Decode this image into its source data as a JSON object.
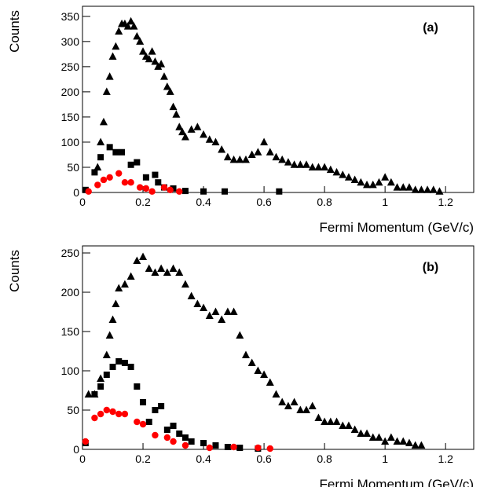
{
  "chart_data": [
    {
      "type": "scatter",
      "label": "(a)",
      "x_label": "Fermi Momentum (GeV/c)",
      "y_label": "Counts",
      "xlim": [
        0,
        1.293
      ],
      "ylim": [
        0,
        370
      ],
      "xticks": [
        0,
        0.2,
        0.4,
        0.6,
        0.8,
        1,
        1.2
      ],
      "yticks": [
        0,
        50,
        100,
        150,
        200,
        250,
        300,
        350
      ],
      "series": [
        {
          "marker": "triangle",
          "color": "#000000",
          "x": [
            0.05,
            0.06,
            0.07,
            0.08,
            0.09,
            0.1,
            0.11,
            0.12,
            0.13,
            0.14,
            0.15,
            0.16,
            0.17,
            0.18,
            0.19,
            0.2,
            0.21,
            0.22,
            0.23,
            0.24,
            0.25,
            0.26,
            0.27,
            0.28,
            0.29,
            0.3,
            0.31,
            0.32,
            0.33,
            0.34,
            0.36,
            0.38,
            0.4,
            0.42,
            0.44,
            0.46,
            0.48,
            0.5,
            0.52,
            0.54,
            0.56,
            0.58,
            0.6,
            0.62,
            0.64,
            0.66,
            0.68,
            0.7,
            0.72,
            0.74,
            0.76,
            0.78,
            0.8,
            0.82,
            0.84,
            0.86,
            0.88,
            0.9,
            0.92,
            0.94,
            0.96,
            0.98,
            1.0,
            1.02,
            1.04,
            1.06,
            1.08,
            1.1,
            1.12,
            1.14,
            1.16,
            1.18
          ],
          "values": [
            50,
            100,
            140,
            200,
            230,
            270,
            290,
            320,
            335,
            335,
            330,
            340,
            330,
            310,
            300,
            280,
            270,
            265,
            280,
            260,
            250,
            255,
            230,
            210,
            200,
            170,
            155,
            130,
            120,
            110,
            125,
            130,
            115,
            105,
            100,
            85,
            70,
            65,
            65,
            65,
            75,
            80,
            100,
            80,
            70,
            65,
            60,
            55,
            55,
            55,
            50,
            50,
            50,
            45,
            40,
            35,
            30,
            25,
            20,
            15,
            15,
            20,
            30,
            20,
            10,
            10,
            10,
            5,
            5,
            5,
            5,
            2
          ]
        },
        {
          "marker": "square",
          "color": "#000000",
          "x": [
            0.01,
            0.04,
            0.06,
            0.09,
            0.11,
            0.13,
            0.16,
            0.18,
            0.21,
            0.24,
            0.25,
            0.27,
            0.3,
            0.34,
            0.4,
            0.47,
            0.65
          ],
          "values": [
            5,
            40,
            70,
            90,
            80,
            80,
            55,
            60,
            30,
            35,
            20,
            10,
            8,
            3,
            2,
            2,
            2
          ]
        },
        {
          "marker": "circle",
          "color": "#ff0000",
          "x": [
            0.02,
            0.05,
            0.07,
            0.09,
            0.12,
            0.14,
            0.16,
            0.19,
            0.21,
            0.23,
            0.27,
            0.29,
            0.32
          ],
          "values": [
            2,
            15,
            25,
            30,
            38,
            20,
            20,
            10,
            8,
            2,
            10,
            5,
            2
          ]
        }
      ]
    },
    {
      "type": "scatter",
      "label": "(b)",
      "x_label": "Fermi Momentum (GeV/c)",
      "y_label": "Counts",
      "xlim": [
        0,
        1.293
      ],
      "ylim": [
        0,
        259
      ],
      "xticks": [
        0,
        0.2,
        0.4,
        0.6,
        0.8,
        1,
        1.2
      ],
      "yticks": [
        0,
        50,
        100,
        150,
        200,
        250
      ],
      "series": [
        {
          "marker": "triangle",
          "color": "#000000",
          "x": [
            0.02,
            0.04,
            0.06,
            0.08,
            0.09,
            0.1,
            0.11,
            0.12,
            0.14,
            0.16,
            0.18,
            0.2,
            0.22,
            0.24,
            0.26,
            0.28,
            0.3,
            0.32,
            0.34,
            0.36,
            0.38,
            0.4,
            0.42,
            0.44,
            0.46,
            0.48,
            0.5,
            0.52,
            0.54,
            0.56,
            0.58,
            0.6,
            0.62,
            0.64,
            0.66,
            0.68,
            0.7,
            0.72,
            0.74,
            0.76,
            0.78,
            0.8,
            0.82,
            0.84,
            0.86,
            0.88,
            0.9,
            0.92,
            0.94,
            0.96,
            0.98,
            1.0,
            1.02,
            1.04,
            1.06,
            1.08,
            1.1,
            1.12
          ],
          "values": [
            70,
            70,
            90,
            120,
            145,
            165,
            185,
            205,
            210,
            220,
            240,
            245,
            230,
            225,
            230,
            225,
            230,
            225,
            210,
            195,
            185,
            180,
            170,
            175,
            165,
            175,
            175,
            145,
            120,
            110,
            100,
            95,
            85,
            70,
            60,
            55,
            60,
            50,
            50,
            55,
            40,
            35,
            35,
            35,
            30,
            30,
            25,
            20,
            20,
            15,
            15,
            10,
            15,
            10,
            10,
            8,
            5,
            5
          ]
        },
        {
          "marker": "square",
          "color": "#000000",
          "x": [
            0.01,
            0.04,
            0.06,
            0.08,
            0.1,
            0.12,
            0.14,
            0.16,
            0.18,
            0.2,
            0.22,
            0.24,
            0.26,
            0.28,
            0.3,
            0.32,
            0.34,
            0.36,
            0.4,
            0.44,
            0.48,
            0.52,
            0.58
          ],
          "values": [
            8,
            70,
            80,
            95,
            105,
            112,
            110,
            105,
            80,
            60,
            35,
            50,
            55,
            25,
            30,
            20,
            15,
            10,
            8,
            5,
            3,
            2,
            1
          ]
        },
        {
          "marker": "circle",
          "color": "#ff0000",
          "x": [
            0.01,
            0.04,
            0.06,
            0.08,
            0.1,
            0.12,
            0.14,
            0.18,
            0.2,
            0.24,
            0.28,
            0.3,
            0.34,
            0.42,
            0.5,
            0.58,
            0.62
          ],
          "values": [
            10,
            40,
            45,
            50,
            48,
            45,
            45,
            35,
            32,
            18,
            15,
            10,
            5,
            2,
            3,
            2,
            1
          ]
        }
      ]
    }
  ]
}
